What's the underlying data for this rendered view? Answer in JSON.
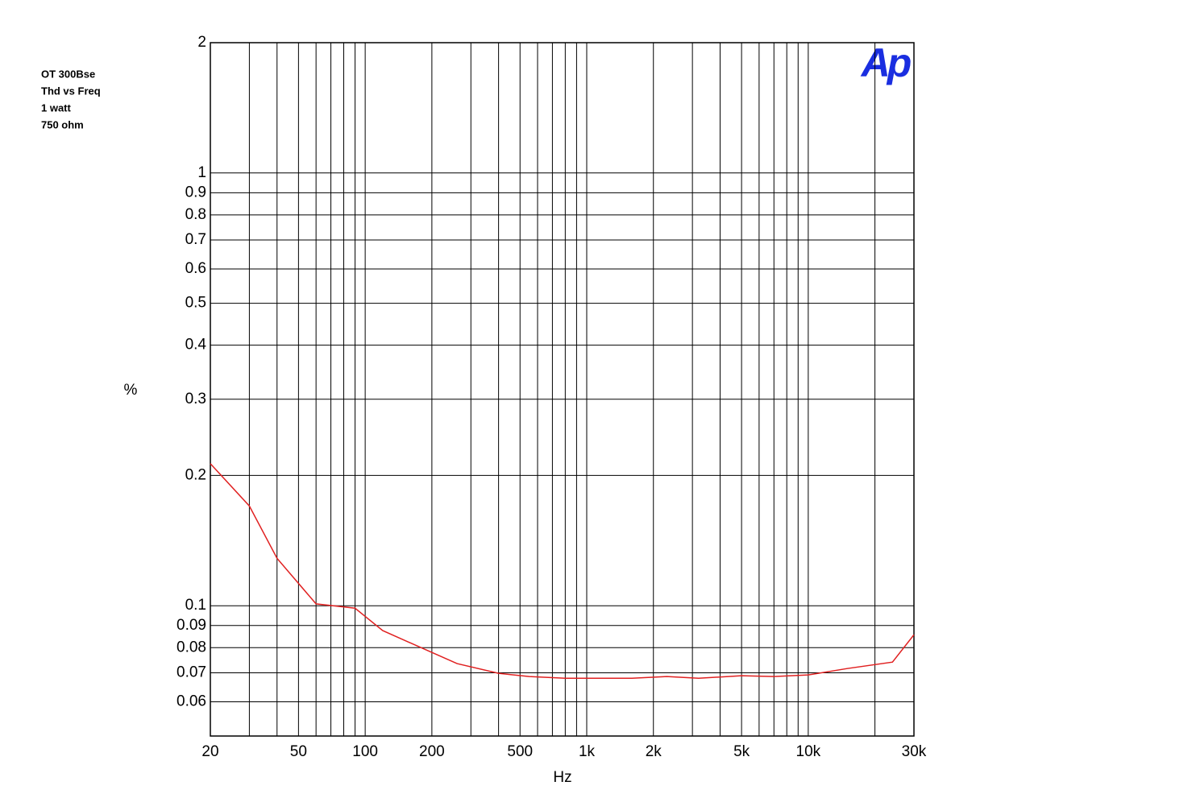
{
  "chart_data": {
    "type": "line",
    "notes": [
      "OT 300Bse",
      "Thd vs Freq",
      "1 watt",
      "750 ohm"
    ],
    "logo": "Ap",
    "ylabel": "%",
    "xlabel": "Hz",
    "xlog": true,
    "ylog": true,
    "grid": true,
    "xlim": [
      20,
      30000
    ],
    "ylim": [
      0.05,
      2
    ],
    "xticks": [
      20,
      50,
      100,
      200,
      500,
      {
        "value": 1000,
        "label": "1k"
      },
      {
        "value": 2000,
        "label": "2k"
      },
      {
        "value": 5000,
        "label": "5k"
      },
      {
        "value": 10000,
        "label": "10k"
      },
      {
        "value": 30000,
        "label": "30k"
      }
    ],
    "xminor": [
      30,
      40,
      60,
      70,
      80,
      90,
      300,
      400,
      600,
      700,
      800,
      900,
      3000,
      4000,
      6000,
      7000,
      8000,
      9000,
      20000
    ],
    "yticks": [
      2,
      1,
      0.9,
      0.8,
      0.7,
      0.6,
      0.5,
      0.4,
      0.3,
      0.2,
      0.1,
      0.09,
      0.08,
      0.07,
      0.06
    ],
    "x": [
      20,
      30,
      40,
      60,
      90,
      120,
      200,
      260,
      400,
      550,
      800,
      1600,
      2300,
      3200,
      5000,
      7000,
      10000,
      15000,
      24000,
      30000
    ],
    "series": [
      {
        "color": "#e02020",
        "values": [
          0.213,
          0.17,
          0.1287,
          0.101,
          0.0987,
          0.0876,
          0.078,
          0.0735,
          0.0698,
          0.0686,
          0.068,
          0.068,
          0.0686,
          0.068,
          0.0689,
          0.0686,
          0.0692,
          0.0716,
          0.0741,
          0.0857
        ]
      }
    ]
  }
}
